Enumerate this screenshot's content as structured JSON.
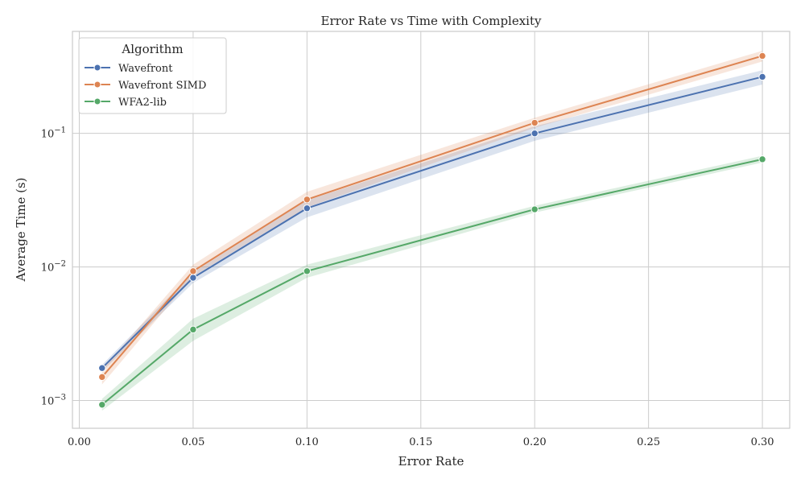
{
  "chart_data": {
    "type": "line",
    "title": "Error Rate vs Time with Complexity",
    "xlabel": "Error Rate",
    "ylabel": "Average Time (s)",
    "yscale": "log",
    "xlim": [
      -0.003,
      0.312
    ],
    "ylim": [
      0.00062,
      0.58
    ],
    "grid": true,
    "x_ticks": [
      {
        "value": 0.0,
        "label": "0.00"
      },
      {
        "value": 0.05,
        "label": "0.05"
      },
      {
        "value": 0.1,
        "label": "0.10"
      },
      {
        "value": 0.15,
        "label": "0.15"
      },
      {
        "value": 0.2,
        "label": "0.20"
      },
      {
        "value": 0.25,
        "label": "0.25"
      },
      {
        "value": 0.3,
        "label": "0.30"
      }
    ],
    "y_ticks": [
      {
        "value": 0.001,
        "base": "10",
        "exp": "−3"
      },
      {
        "value": 0.01,
        "base": "10",
        "exp": "−2"
      },
      {
        "value": 0.1,
        "base": "10",
        "exp": "−1"
      }
    ],
    "legend": {
      "title": "Algorithm",
      "position": "top-left"
    },
    "series": [
      {
        "name": "Wavefront",
        "color": "#4c72b0",
        "x": [
          0.01,
          0.05,
          0.1,
          0.2,
          0.3
        ],
        "values": [
          0.00175,
          0.0083,
          0.0275,
          0.1,
          0.265
        ],
        "ci_low": [
          0.00165,
          0.0076,
          0.0235,
          0.088,
          0.232
        ],
        "ci_high": [
          0.00185,
          0.0091,
          0.0315,
          0.113,
          0.297
        ]
      },
      {
        "name": "Wavefront SIMD",
        "color": "#dd8452",
        "x": [
          0.01,
          0.05,
          0.1,
          0.2,
          0.3
        ],
        "values": [
          0.0015,
          0.0093,
          0.032,
          0.12,
          0.38
        ],
        "ci_low": [
          0.00132,
          0.0085,
          0.028,
          0.11,
          0.345
        ],
        "ci_high": [
          0.0017,
          0.0104,
          0.0365,
          0.131,
          0.415
        ]
      },
      {
        "name": "WFA2-lib",
        "color": "#55a868",
        "x": [
          0.01,
          0.05,
          0.1,
          0.2,
          0.3
        ],
        "values": [
          0.00093,
          0.0034,
          0.0093,
          0.027,
          0.064
        ],
        "ci_low": [
          0.00084,
          0.0028,
          0.0083,
          0.0255,
          0.0605
        ],
        "ci_high": [
          0.00103,
          0.0041,
          0.0104,
          0.0287,
          0.068
        ]
      }
    ]
  }
}
